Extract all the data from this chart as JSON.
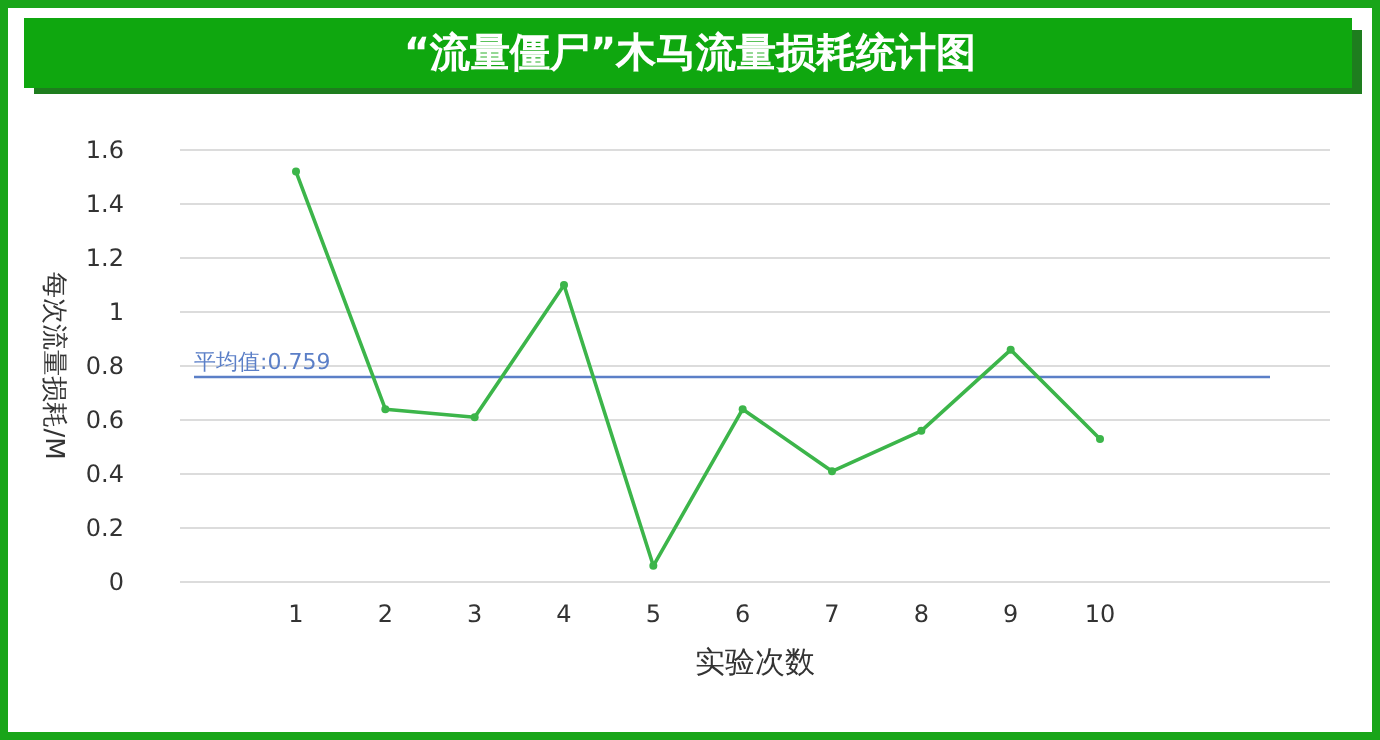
{
  "chart_data": {
    "type": "line",
    "title": "“流量僵尸”木马流量损耗统计图",
    "xlabel": "实验次数",
    "ylabel": "每次流量损耗/M",
    "categories": [
      "1",
      "2",
      "3",
      "4",
      "5",
      "6",
      "7",
      "8",
      "9",
      "10"
    ],
    "series": [
      {
        "color": "#3cb54a",
        "values": [
          1.52,
          0.64,
          0.61,
          1.1,
          0.06,
          0.64,
          0.41,
          0.56,
          0.86,
          0.53
        ]
      }
    ],
    "ylim": [
      0,
      1.6
    ],
    "yticks": [
      0,
      0.2,
      0.4,
      0.6,
      0.8,
      1,
      1.2,
      1.4,
      1.6
    ],
    "grid": "y",
    "marker": "circle",
    "ref_lines": [
      {
        "axis": "y",
        "value": 0.759,
        "label": "平均值:0.759",
        "color": "#5b7fc7"
      }
    ]
  }
}
